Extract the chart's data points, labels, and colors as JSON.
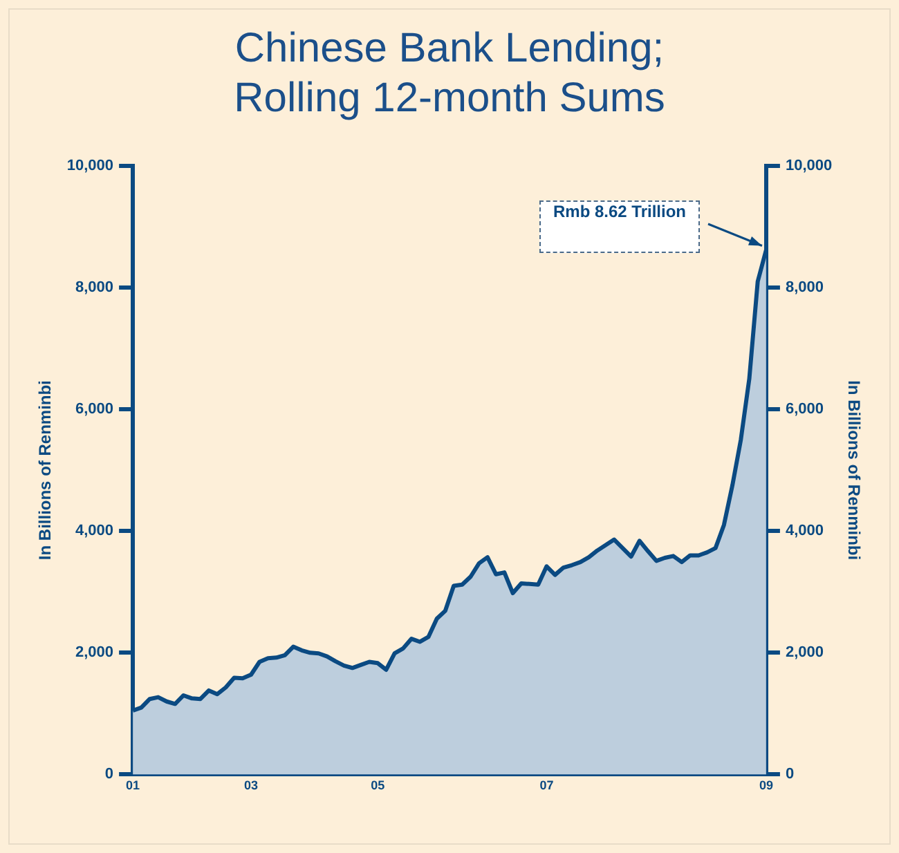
{
  "chart_data": {
    "type": "area",
    "title": "Chinese Bank Lending;\nRolling 12-month Sums",
    "ylabel": "In Billions of Renminbi",
    "y2label": "In Billions of Renminbi",
    "categories": [
      "01",
      null,
      null,
      null,
      null,
      null,
      null,
      null,
      null,
      null,
      null,
      null,
      null,
      null,
      "03",
      null,
      null,
      null,
      null,
      null,
      null,
      null,
      null,
      null,
      null,
      null,
      null,
      null,
      null,
      "05",
      null,
      null,
      null,
      null,
      null,
      null,
      null,
      null,
      null,
      null,
      null,
      null,
      null,
      null,
      null,
      null,
      null,
      null,
      null,
      "07",
      null,
      null,
      null,
      null,
      null,
      null,
      null,
      null,
      null,
      null,
      null,
      null,
      null,
      null,
      null,
      null,
      null,
      null,
      null,
      null,
      null,
      null,
      null,
      null,
      null,
      "09"
    ],
    "series": [
      {
        "color": "#0b4a82",
        "values": [
          1050,
          1100,
          1240,
          1270,
          1200,
          1160,
          1300,
          1250,
          1240,
          1380,
          1320,
          1430,
          1590,
          1580,
          1640,
          1850,
          1910,
          1920,
          1960,
          2100,
          2040,
          2000,
          1990,
          1940,
          1860,
          1790,
          1750,
          1800,
          1850,
          1830,
          1720,
          1990,
          2070,
          2230,
          2180,
          2260,
          2560,
          2690,
          3100,
          3120,
          3250,
          3470,
          3570,
          3290,
          3320,
          2980,
          3140,
          3130,
          3120,
          3420,
          3280,
          3400,
          3440,
          3490,
          3570,
          3680,
          3770,
          3860,
          3720,
          3580,
          3840,
          3670,
          3510,
          3560,
          3590,
          3490,
          3600,
          3600,
          3650,
          3720,
          4100,
          4750,
          5500,
          6500,
          8100,
          8620
        ]
      }
    ],
    "ylim": [
      0,
      10000
    ],
    "yticks": [
      0,
      {
        "value": 2000,
        "label": "2,000"
      },
      {
        "value": 4000,
        "label": "4,000"
      },
      {
        "value": 6000,
        "label": "6,000"
      },
      {
        "value": 8000,
        "label": "8,000"
      },
      {
        "value": 10000,
        "label": "10,000"
      }
    ],
    "y2lim": [
      0,
      10000
    ],
    "y2ticks": [
      0,
      {
        "value": 2000,
        "label": "2,000"
      },
      {
        "value": 4000,
        "label": "4,000"
      },
      {
        "value": 6000,
        "label": "6,000"
      },
      {
        "value": 8000,
        "label": "8,000"
      },
      {
        "value": 10000,
        "label": "10,000"
      }
    ],
    "annotations": [
      "Rmb 8.62 Trillion"
    ],
    "grid": false,
    "legend": false
  }
}
